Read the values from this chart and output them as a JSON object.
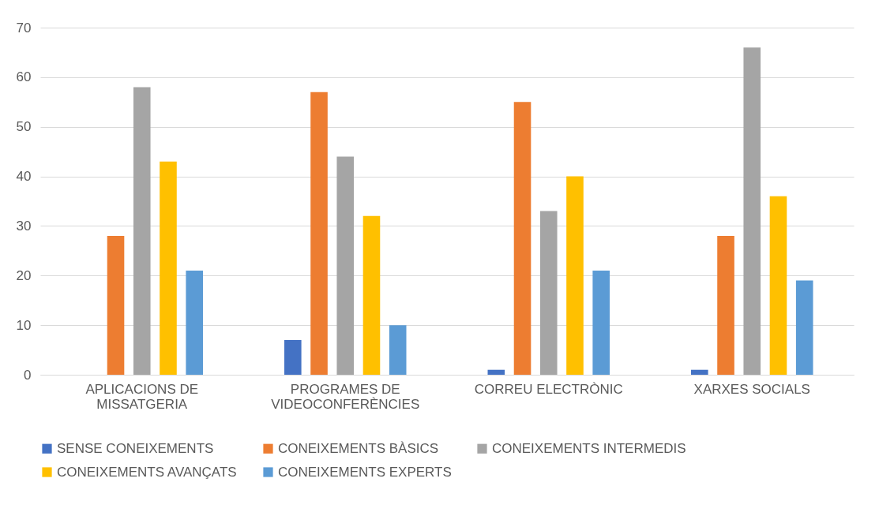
{
  "chart_data": {
    "type": "bar",
    "categories": [
      "APLICACIONS DE MISSATGERIA",
      "PROGRAMES DE VIDEOCONFERÈNCIES",
      "CORREU ELECTRÒNIC",
      "XARXES SOCIALS"
    ],
    "series": [
      {
        "name": "SENSE CONEIXEMENTS",
        "color": "#4472c4",
        "values": [
          0,
          7,
          1,
          1
        ]
      },
      {
        "name": "CONEIXEMENTS BÀSICS",
        "color": "#ed7d31",
        "values": [
          28,
          57,
          55,
          28
        ]
      },
      {
        "name": "CONEIXEMENTS INTERMEDIS",
        "color": "#a5a5a5",
        "values": [
          58,
          44,
          33,
          66
        ]
      },
      {
        "name": "CONEIXEMENTS AVANÇATS",
        "color": "#ffc000",
        "values": [
          43,
          32,
          40,
          36
        ]
      },
      {
        "name": "CONEIXEMENTS EXPERTS",
        "color": "#5b9bd5",
        "values": [
          21,
          10,
          21,
          19
        ]
      }
    ],
    "ylim": [
      0,
      70
    ],
    "yticks": [
      0,
      10,
      20,
      30,
      40,
      50,
      60,
      70
    ],
    "grid": "y",
    "legend": "bottom"
  }
}
